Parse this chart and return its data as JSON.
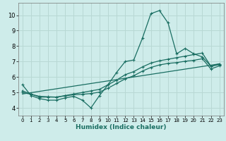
{
  "xlabel": "Humidex (Indice chaleur)",
  "xlim": [
    -0.5,
    23.5
  ],
  "ylim": [
    3.5,
    10.8
  ],
  "yticks": [
    4,
    5,
    6,
    7,
    8,
    9,
    10
  ],
  "xticks": [
    0,
    1,
    2,
    3,
    4,
    5,
    6,
    7,
    8,
    9,
    10,
    11,
    12,
    13,
    14,
    15,
    16,
    17,
    18,
    19,
    20,
    21,
    22,
    23
  ],
  "background_color": "#ceecea",
  "grid_color": "#b8d8d4",
  "line_color": "#1a6e62",
  "series1_x": [
    0,
    1,
    2,
    3,
    4,
    5,
    6,
    7,
    8,
    9,
    10,
    11,
    12,
    13,
    14,
    15,
    16,
    17,
    18,
    19,
    20,
    21,
    22,
    23
  ],
  "series1_y": [
    5.5,
    4.8,
    4.6,
    4.5,
    4.5,
    4.65,
    4.75,
    4.5,
    4.0,
    4.8,
    5.5,
    6.3,
    7.0,
    7.1,
    8.5,
    10.1,
    10.3,
    9.5,
    7.5,
    7.85,
    7.5,
    7.3,
    6.7,
    6.8
  ],
  "series2_x": [
    0,
    1,
    2,
    3,
    4,
    5,
    6,
    7,
    8,
    9,
    10,
    11,
    12,
    13,
    14,
    15,
    16,
    17,
    18,
    19,
    20,
    21,
    22,
    23
  ],
  "series2_y": [
    5.1,
    4.9,
    4.7,
    4.7,
    4.7,
    4.8,
    4.9,
    5.0,
    5.1,
    5.2,
    5.5,
    5.8,
    6.15,
    6.35,
    6.65,
    6.9,
    7.05,
    7.15,
    7.25,
    7.35,
    7.45,
    7.55,
    6.7,
    6.85
  ],
  "series3_x": [
    0,
    1,
    2,
    3,
    4,
    5,
    6,
    7,
    8,
    9,
    10,
    11,
    12,
    13,
    14,
    15,
    16,
    17,
    18,
    19,
    20,
    21,
    22,
    23
  ],
  "series3_y": [
    5.0,
    4.88,
    4.75,
    4.72,
    4.7,
    4.78,
    4.85,
    4.88,
    4.93,
    5.02,
    5.28,
    5.58,
    5.88,
    6.08,
    6.38,
    6.62,
    6.78,
    6.88,
    6.93,
    7.02,
    7.08,
    7.18,
    6.52,
    6.72
  ],
  "series4_x": [
    0,
    23
  ],
  "series4_y": [
    4.9,
    6.85
  ]
}
